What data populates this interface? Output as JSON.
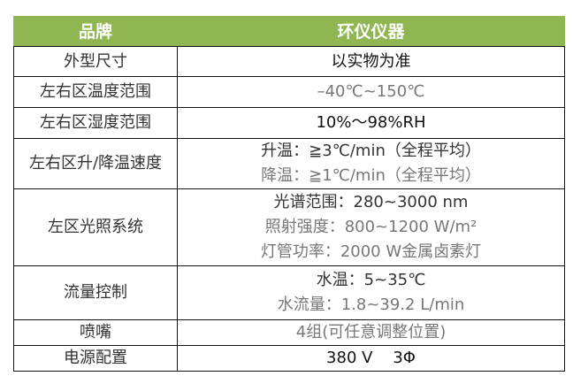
{
  "header": {
    "label": "品牌",
    "value": "环仪仪器"
  },
  "rows": [
    {
      "label": "外型尺寸",
      "lines": [
        "以实物为准"
      ]
    },
    {
      "label": "左右区温度范围",
      "lines": [
        "–40℃~150℃"
      ]
    },
    {
      "label": "左右区湿度范围",
      "lines": [
        "10%～98%RH"
      ]
    },
    {
      "label": "左右区升/降温速度",
      "lines": [
        "升温：≧3℃/min（全程平均）",
        "降温：≧1℃/min（全程平均）"
      ]
    },
    {
      "label": "左区光照系统",
      "lines": [
        "光谱范围：280~3000 nm",
        "照射强度：800~1200 W/m²",
        "灯管功率：2000 W金属卤素灯"
      ]
    },
    {
      "label": "流量控制",
      "lines": [
        "水温：5~35℃",
        "水流量：1.8~39.2 L/min"
      ]
    },
    {
      "label": "喷嘴",
      "lines": [
        "4组(可任意调整位置)"
      ]
    },
    {
      "label": "电源配置",
      "lines": [
        "380 V    3Φ"
      ]
    }
  ],
  "colors": {
    "header_bg": "#8fb651",
    "header_text": "#ffffff",
    "border": "#111111"
  }
}
